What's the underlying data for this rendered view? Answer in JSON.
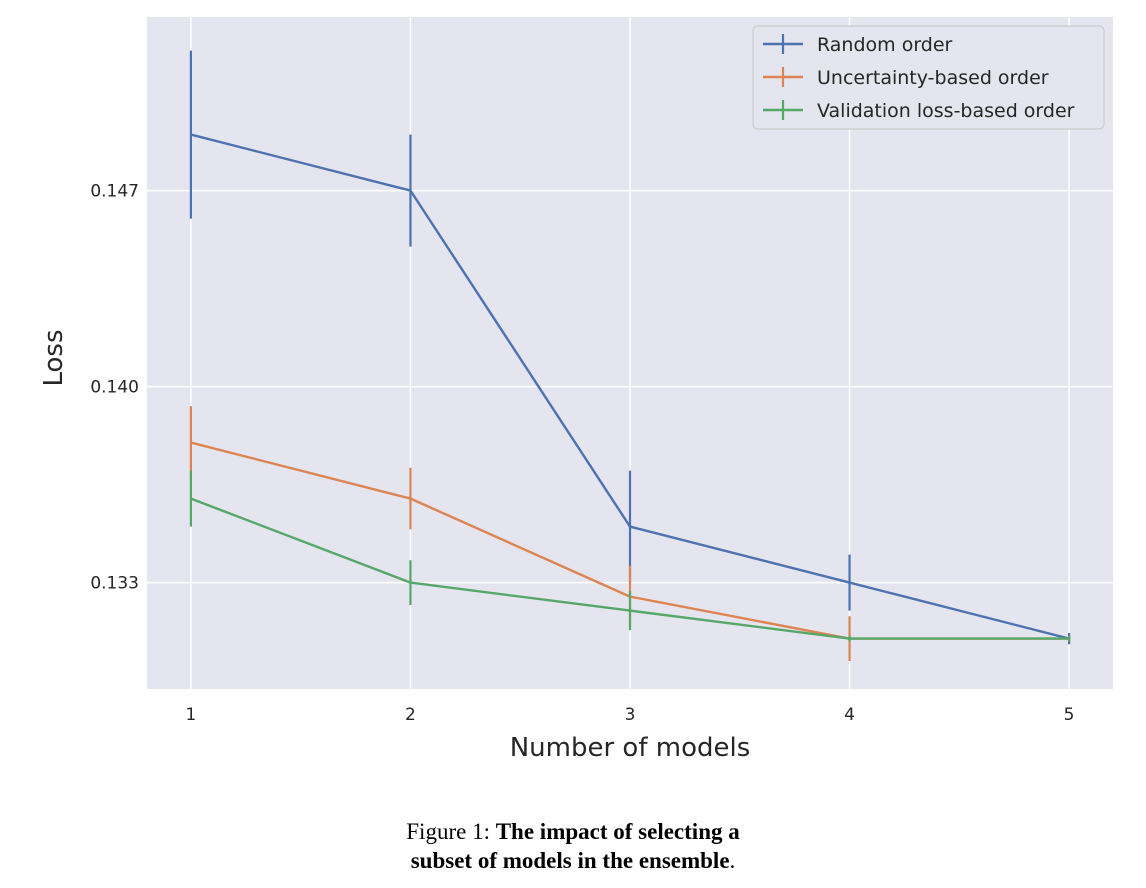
{
  "chart_data": {
    "type": "line",
    "x": [
      1,
      2,
      3,
      4,
      5
    ],
    "xlabel": "Number of models",
    "ylabel": "Loss",
    "xlim": [
      0.8,
      5.2
    ],
    "ylim": [
      0.1292,
      0.1532
    ],
    "xticks": [
      1,
      2,
      3,
      4,
      5
    ],
    "yticks": [
      0.133,
      0.14,
      0.147
    ],
    "ytick_labels": [
      "0.133",
      "0.140",
      "0.147"
    ],
    "grid": true,
    "legend_position": "top-right",
    "series": [
      {
        "name": "Random order",
        "color": "#4c72b0",
        "values": [
          0.149,
          0.147,
          0.135,
          0.133,
          0.131
        ],
        "errors": [
          0.003,
          0.002,
          0.002,
          0.001,
          0.0002
        ]
      },
      {
        "name": "Uncertainty-based order",
        "color": "#dd8452",
        "values": [
          0.138,
          0.136,
          0.1325,
          0.131,
          0.131
        ],
        "errors": [
          0.0013,
          0.0011,
          0.0011,
          0.0008,
          0.0001
        ]
      },
      {
        "name": "Validation loss-based order",
        "color": "#55a868",
        "values": [
          0.136,
          0.133,
          0.132,
          0.131,
          0.131
        ],
        "errors": [
          0.001,
          0.0008,
          0.0007,
          0.0001,
          0.0001
        ]
      }
    ]
  },
  "caption": {
    "prefix": "Figure 1: ",
    "bold_line1": "The impact of selecting a",
    "bold_line2": "subset of models in the ensemble",
    "suffix": "."
  }
}
